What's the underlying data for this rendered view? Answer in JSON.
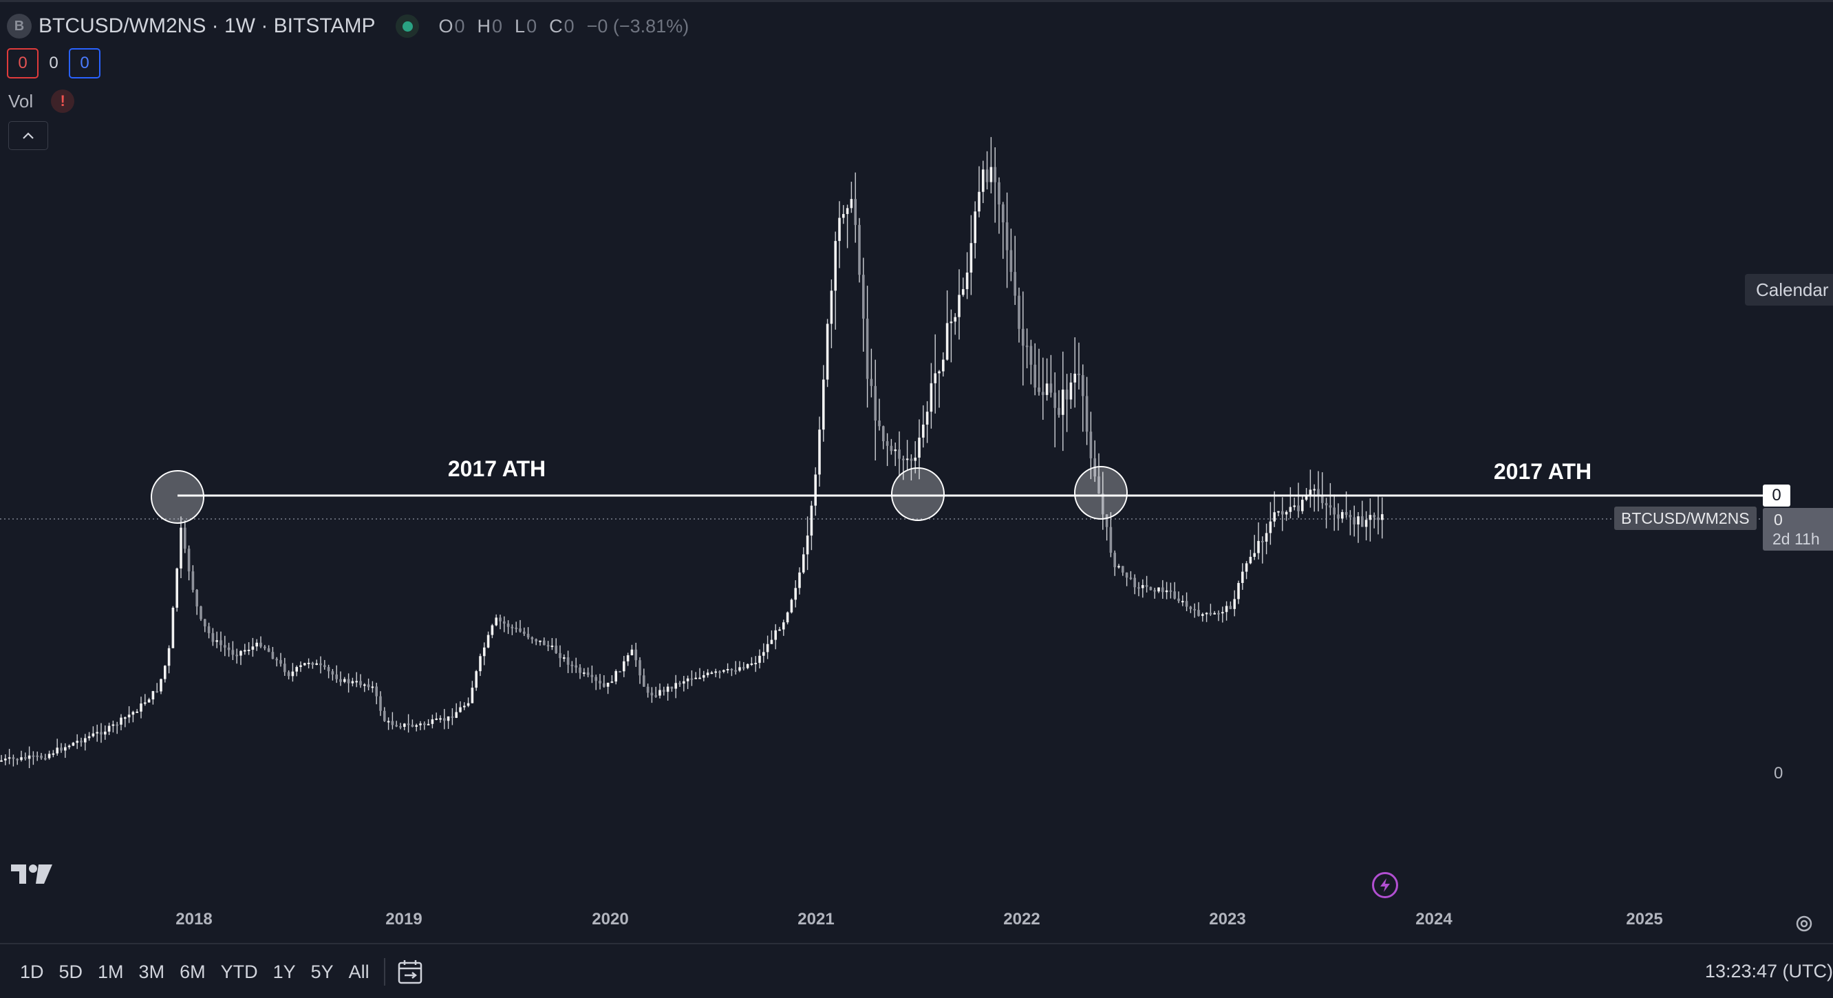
{
  "header": {
    "symbol_badge": "B",
    "title": "BTCUSD/WM2NS · 1W · BITSTAMP",
    "ohlc": {
      "o_label": "O",
      "o_value": "0",
      "h_label": "H",
      "h_value": "0",
      "l_label": "L",
      "l_value": "0",
      "c_label": "C",
      "c_value": "0",
      "change": "−0 (−3.81%)"
    }
  },
  "counters": {
    "red": "0",
    "middle": "0",
    "blue": "0"
  },
  "indicators": {
    "vol_label": "Vol",
    "warning_glyph": "!"
  },
  "chart": {
    "annotation_left": "2017 ATH",
    "annotation_right": "2017 ATH",
    "ath_line_price_tag": "0",
    "symbol_tag": "BTCUSD/WM2NS",
    "last_price": "0",
    "countdown": "2d 11h",
    "scale_label_bottom": "0",
    "calendar_tag": "Calendar",
    "colors": {
      "background": "#161a25",
      "candles": "#e8e8e8",
      "ath_line": "#ffffff",
      "accent_purple": "#b14fd1"
    }
  },
  "time_axis": {
    "ticks": [
      "2018",
      "2019",
      "2020",
      "2021",
      "2022",
      "2023",
      "2024",
      "2025"
    ]
  },
  "toolbar": {
    "ranges": [
      "1D",
      "5D",
      "1M",
      "3M",
      "6M",
      "YTD",
      "1Y",
      "5Y",
      "All"
    ],
    "clock": "13:23:47 (UTC)"
  },
  "icons": {
    "logo": "tradingview-logo-icon",
    "calendar": "calendar-range-icon",
    "bolt": "lightning-bolt-icon",
    "settings": "gear-icon",
    "collapse": "chevron-up-icon"
  }
}
